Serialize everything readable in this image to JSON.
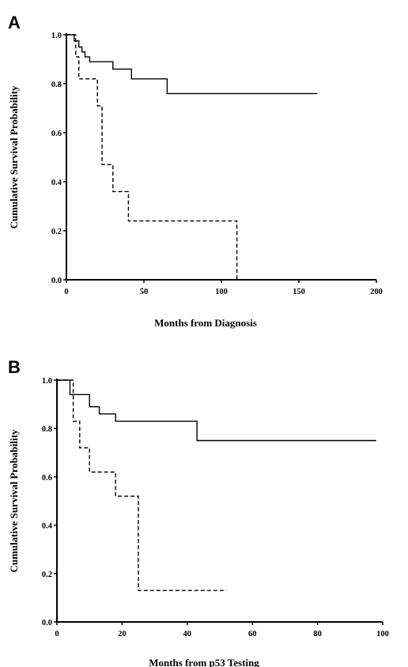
{
  "chart_data": [
    {
      "panel": "A",
      "type": "line",
      "step": true,
      "xlabel": "Months from Diagnosis",
      "ylabel": "Cumulative Survival Probability",
      "xlim": [
        0,
        200
      ],
      "ylim": [
        0,
        1.0
      ],
      "xticks": [
        "0",
        "50",
        "100",
        "150",
        "200"
      ],
      "yticks": [
        "0.0",
        "0.2",
        "0.4",
        "0.6",
        "0.8",
        "1.0"
      ],
      "series": [
        {
          "style": "solid",
          "x": [
            0,
            5,
            8,
            10,
            12,
            15,
            20,
            30,
            42,
            65,
            162
          ],
          "y": [
            1.0,
            0.975,
            0.95,
            0.93,
            0.91,
            0.89,
            0.89,
            0.86,
            0.82,
            0.76,
            0.76
          ]
        },
        {
          "style": "dashed",
          "x": [
            0,
            6,
            8,
            20,
            23,
            30,
            40,
            110
          ],
          "y": [
            1.0,
            0.91,
            0.82,
            0.71,
            0.47,
            0.36,
            0.24,
            0.0
          ]
        }
      ]
    },
    {
      "panel": "B",
      "type": "line",
      "step": true,
      "xlabel": "Months from p53 Testing",
      "ylabel": "Cumulative Survival Probability",
      "xlim": [
        0,
        100
      ],
      "ylim": [
        0,
        1.0
      ],
      "xticks": [
        "0",
        "20",
        "40",
        "60",
        "80",
        "100"
      ],
      "yticks": [
        "0.0",
        "0.2",
        "0.4",
        "0.6",
        "0.8",
        "1.0"
      ],
      "series": [
        {
          "style": "solid",
          "x": [
            0,
            4,
            10,
            13,
            18,
            43,
            98
          ],
          "y": [
            1.0,
            0.94,
            0.89,
            0.86,
            0.83,
            0.75,
            0.75
          ]
        },
        {
          "style": "dashed",
          "x": [
            0,
            5,
            7,
            10,
            18,
            25,
            52
          ],
          "y": [
            1.0,
            0.83,
            0.72,
            0.62,
            0.52,
            0.13,
            0.13
          ]
        }
      ]
    }
  ]
}
